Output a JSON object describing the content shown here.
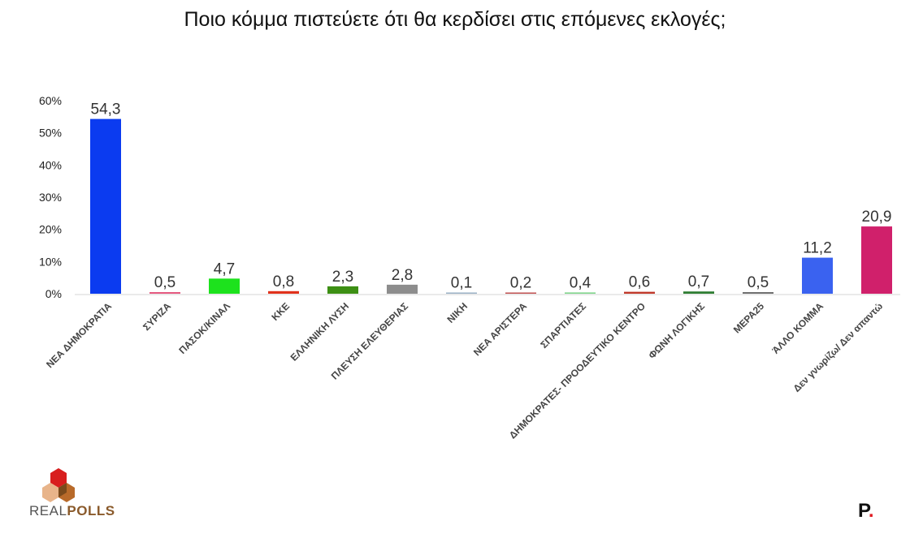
{
  "title": "Ποιο κόμμα πιστεύετε ότι θα κερδίσει στις επόμενες εκλογές;",
  "logo": {
    "word1": "REAL",
    "word2": "POLLS"
  },
  "publisher_mark": "P",
  "chart_data": {
    "type": "bar",
    "title": "Ποιο κόμμα πιστεύετε ότι θα κερδίσει στις επόμενες εκλογές;",
    "xlabel": "",
    "ylabel": "",
    "ylim": [
      0,
      60
    ],
    "yticks": [
      "0%",
      "10%",
      "20%",
      "30%",
      "40%",
      "50%",
      "60%"
    ],
    "grid": false,
    "categories": [
      "ΝΕΑ ΔΗΜΟΚΡΑΤΙΑ",
      "ΣΥΡΙΖΑ",
      "ΠΑΣΟΚ/ΚΙΝΑΛ",
      "ΚΚΕ",
      "ΕΛΛΗΝΙΚΗ ΛΥΣΗ",
      "ΠΛΕΥΣΗ ΕΛΕΥΘΕΡΙΑΣ",
      "ΝΙΚΗ",
      "ΝΕΑ ΑΡΙΣΤΕΡΑ",
      "ΣΠΑΡΤΙΑΤΕΣ",
      "ΔΗΜΟΚΡΑΤΕΣ- ΠΡΟΟΔΕΥΤΙΚΟ ΚΕΝΤΡΟ",
      "ΦΩΝΗ ΛΟΓΙΚΗΣ",
      "ΜΕΡΑ25",
      "ΆΛΛΟ ΚΟΜΜΑ",
      "Δεν γνωρίζω/ Δεν απαντώ"
    ],
    "values": [
      54.3,
      0.5,
      4.7,
      0.8,
      2.3,
      2.8,
      0.1,
      0.2,
      0.4,
      0.6,
      0.7,
      0.5,
      11.2,
      20.9
    ],
    "value_labels": [
      "54,3",
      "0,5",
      "4,7",
      "0,8",
      "2,3",
      "2,8",
      "0,1",
      "0,2",
      "0,4",
      "0,6",
      "0,7",
      "0,5",
      "11,2",
      "20,9"
    ],
    "colors": [
      "#0b3bf0",
      "#e5577e",
      "#1de21d",
      "#e0321c",
      "#3d8f14",
      "#8d8d8d",
      "#9ab0c4",
      "#c05050",
      "#7fd48a",
      "#c0392b",
      "#2e7d32",
      "#6e6e6e",
      "#3a62f0",
      "#d0206b"
    ]
  }
}
